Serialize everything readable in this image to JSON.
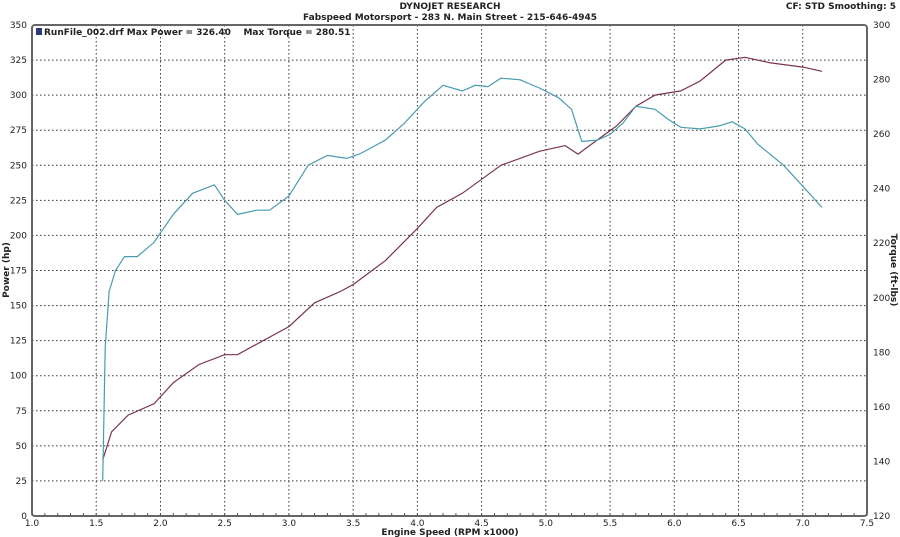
{
  "header": {
    "title": "DYNOJET RESEARCH",
    "subtitle": "Fabspeed Motorsport - 283 N. Main Street - 215-646-4945",
    "info": "CF: STD  Smoothing: 5"
  },
  "legend": {
    "text": "RunFile_002.drf Max Power = 326.40    Max Torque = 280.51",
    "swatch_color": "#2a3a7a"
  },
  "chart_data": {
    "type": "line",
    "xlabel": "Engine Speed (RPM x1000)",
    "ylabel": "Power (hp)",
    "y2label": "Torque (ft-lbs)",
    "xlim": [
      1.0,
      7.5
    ],
    "ylim": [
      0,
      350
    ],
    "y2lim": [
      120,
      300
    ],
    "xticks": [
      "1.0",
      "1.5",
      "2.0",
      "2.5",
      "3.0",
      "3.5",
      "4.0",
      "4.5",
      "5.0",
      "5.5",
      "6.0",
      "6.5",
      "7.0",
      "7.5"
    ],
    "yticks": [
      "0",
      "25",
      "50",
      "75",
      "100",
      "125",
      "150",
      "175",
      "200",
      "225",
      "250",
      "275",
      "300",
      "325",
      "350"
    ],
    "y2ticks": [
      "120",
      "140",
      "160",
      "180",
      "200",
      "220",
      "240",
      "260",
      "280",
      "300"
    ],
    "grid": true,
    "series": [
      {
        "axis": "left",
        "color": "#7a3545",
        "x": [
          1.55,
          1.62,
          1.75,
          1.95,
          2.1,
          2.3,
          2.5,
          2.6,
          2.8,
          3.0,
          3.2,
          3.4,
          3.5,
          3.75,
          4.0,
          4.15,
          4.35,
          4.5,
          4.65,
          4.95,
          5.15,
          5.25,
          5.4,
          5.55,
          5.7,
          5.85,
          6.05,
          6.2,
          6.4,
          6.55,
          6.75,
          7.0,
          7.15
        ],
        "y": [
          40,
          60,
          72,
          80,
          95,
          108,
          115,
          115,
          125,
          135,
          152,
          160,
          165,
          182,
          205,
          220,
          230,
          240,
          250,
          260,
          264,
          258,
          268,
          278,
          292,
          300,
          303,
          310,
          325,
          327,
          323,
          320,
          317
        ]
      },
      {
        "axis": "right",
        "color": "#4a9bb0",
        "x": [
          1.55,
          1.57,
          1.6,
          1.65,
          1.72,
          1.82,
          1.95,
          2.1,
          2.25,
          2.42,
          2.5,
          2.6,
          2.75,
          2.85,
          3.0,
          3.15,
          3.3,
          3.45,
          3.55,
          3.75,
          3.9,
          4.05,
          4.2,
          4.35,
          4.45,
          4.55,
          4.65,
          4.8,
          4.95,
          5.1,
          5.2,
          5.28,
          5.4,
          5.5,
          5.6,
          5.7,
          5.85,
          5.95,
          6.05,
          6.2,
          6.35,
          6.45,
          6.55,
          6.65,
          6.85,
          7.0,
          7.15
        ],
        "y": [
          132.9,
          181.7,
          202.3,
          210,
          215.1,
          215.1,
          220.3,
          230.6,
          238.3,
          241.4,
          235.7,
          230.6,
          232.1,
          232.1,
          237.3,
          248.6,
          252.2,
          251.1,
          252.7,
          257.8,
          264,
          271.7,
          277.9,
          275.8,
          277.9,
          277.4,
          280.5,
          279.9,
          276.9,
          273.3,
          269.1,
          257.3,
          257.8,
          259.9,
          264,
          270.2,
          269.1,
          265.5,
          262.5,
          261.9,
          263,
          264.5,
          261.9,
          256.3,
          248.6,
          240.9,
          233.1
        ]
      }
    ]
  }
}
